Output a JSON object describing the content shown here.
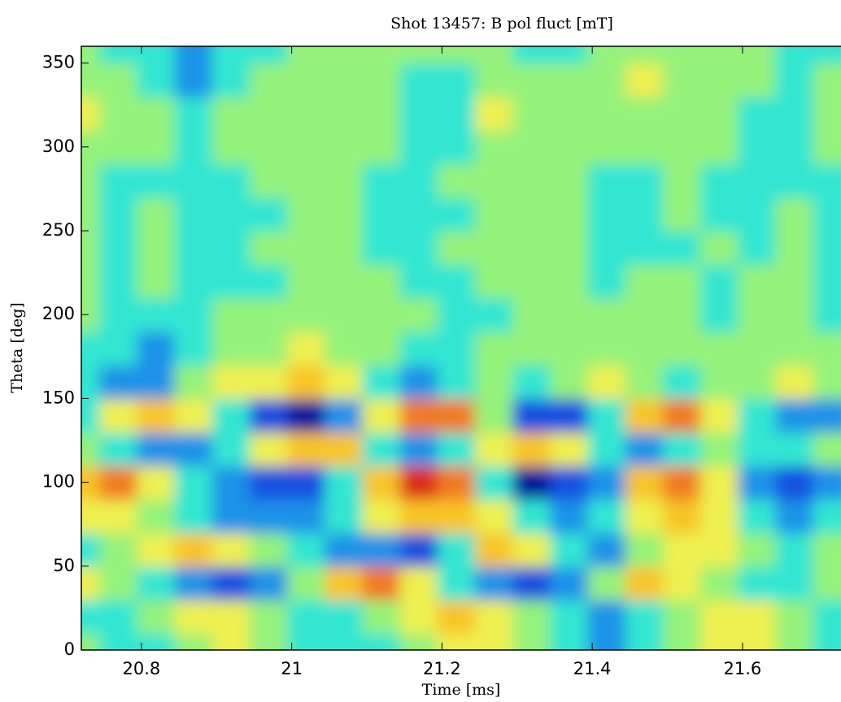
{
  "chart_data": {
    "type": "contour",
    "title": "Shot 13457: B pol fluct [mT]",
    "xlabel": "Time [ms]",
    "ylabel": "Theta [deg]",
    "xlim": [
      20.72,
      21.73
    ],
    "ylim": [
      0,
      360
    ],
    "xticks": [
      20.8,
      21,
      21.2,
      21.4,
      21.6
    ],
    "yticks": [
      0,
      50,
      100,
      150,
      200,
      250,
      300,
      350
    ],
    "x": [
      20.72,
      20.77,
      20.82,
      20.87,
      20.92,
      20.97,
      21.02,
      21.07,
      21.12,
      21.17,
      21.22,
      21.27,
      21.32,
      21.37,
      21.42,
      21.47,
      21.52,
      21.57,
      21.62,
      21.67,
      21.72
    ],
    "y": [
      0,
      20,
      40,
      60,
      80,
      100,
      120,
      140,
      160,
      180,
      200,
      220,
      240,
      260,
      280,
      300,
      320,
      340,
      360
    ],
    "z": [
      [
        0,
        -1,
        -1,
        0,
        1,
        0,
        -1,
        -1,
        -1,
        0,
        1,
        1,
        0,
        -1,
        -2,
        -1,
        0,
        1,
        1,
        0,
        -1
      ],
      [
        -1,
        -1,
        0,
        1,
        1,
        0,
        -1,
        -1,
        0,
        1,
        2,
        1,
        0,
        -1,
        -2,
        -1,
        0,
        1,
        1,
        0,
        -1
      ],
      [
        1,
        0,
        -1,
        -2,
        -3,
        -2,
        0,
        2,
        3,
        1,
        -1,
        -2,
        -3,
        -2,
        0,
        2,
        1,
        0,
        -1,
        -1,
        0
      ],
      [
        -1,
        0,
        1,
        2,
        1,
        0,
        -1,
        -2,
        -2,
        -3,
        -1,
        2,
        1,
        -1,
        -2,
        0,
        1,
        1,
        0,
        -1,
        0
      ],
      [
        1,
        1,
        0,
        -1,
        -2,
        -2,
        -2,
        -1,
        1,
        2,
        2,
        1,
        -1,
        -2,
        -1,
        1,
        2,
        1,
        -1,
        -2,
        -1
      ],
      [
        2,
        3,
        1,
        -1,
        -2,
        -3,
        -3,
        -1,
        2,
        4,
        3,
        -1,
        -4,
        -3,
        -2,
        2,
        3,
        1,
        -2,
        -3,
        -2
      ],
      [
        0,
        -1,
        -2,
        -2,
        -1,
        1,
        2,
        2,
        -1,
        -2,
        -1,
        1,
        2,
        1,
        -1,
        -2,
        -1,
        0,
        -1,
        -1,
        0
      ],
      [
        -1,
        1,
        2,
        1,
        -1,
        -3,
        -4,
        -2,
        1,
        3,
        3,
        0,
        -3,
        -3,
        -1,
        2,
        3,
        1,
        -1,
        -2,
        -2
      ],
      [
        -1,
        -2,
        -2,
        0,
        1,
        1,
        2,
        1,
        -1,
        -2,
        -1,
        0,
        -1,
        0,
        1,
        0,
        -1,
        0,
        0,
        1,
        0
      ],
      [
        -1,
        -1,
        -2,
        -1,
        0,
        0,
        1,
        0,
        0,
        -1,
        -1,
        0,
        0,
        0,
        0,
        0,
        0,
        0,
        0,
        0,
        0
      ],
      [
        0,
        -1,
        -1,
        -1,
        0,
        0,
        0,
        0,
        0,
        0,
        -1,
        -1,
        0,
        0,
        0,
        0,
        0,
        -1,
        0,
        0,
        -1
      ],
      [
        0,
        -1,
        0,
        -1,
        -1,
        -1,
        0,
        0,
        0,
        -1,
        -1,
        0,
        0,
        0,
        -1,
        0,
        0,
        -1,
        0,
        0,
        -1
      ],
      [
        0,
        -1,
        0,
        -1,
        -1,
        0,
        0,
        0,
        -1,
        -1,
        0,
        0,
        0,
        0,
        -1,
        -1,
        -1,
        0,
        -1,
        0,
        -1
      ],
      [
        0,
        -1,
        0,
        -1,
        -1,
        -1,
        0,
        0,
        -1,
        -1,
        -1,
        0,
        0,
        0,
        -1,
        -1,
        0,
        -1,
        -1,
        0,
        -1
      ],
      [
        0,
        -1,
        -1,
        -1,
        -1,
        0,
        0,
        0,
        -1,
        -1,
        0,
        0,
        0,
        0,
        -1,
        -1,
        0,
        -1,
        -1,
        -1,
        -1
      ],
      [
        0,
        0,
        0,
        -1,
        0,
        0,
        0,
        0,
        0,
        -1,
        -1,
        0,
        0,
        0,
        0,
        0,
        0,
        0,
        -1,
        -1,
        0
      ],
      [
        1,
        0,
        0,
        -1,
        0,
        0,
        0,
        0,
        0,
        -1,
        -1,
        1,
        0,
        0,
        0,
        0,
        0,
        0,
        -1,
        -1,
        0
      ],
      [
        0,
        0,
        -1,
        -2,
        -1,
        0,
        0,
        0,
        0,
        -1,
        -1,
        0,
        0,
        0,
        0,
        1,
        0,
        0,
        0,
        -1,
        0
      ],
      [
        0,
        -1,
        -1,
        -2,
        -1,
        -1,
        0,
        0,
        0,
        0,
        0,
        0,
        -1,
        -1,
        0,
        0,
        0,
        0,
        0,
        -1,
        -1
      ]
    ],
    "color_levels": [
      -4,
      -3,
      -2,
      -1,
      0,
      1,
      2,
      3,
      4
    ],
    "colors": [
      "#00129a",
      "#1450e0",
      "#1e92e8",
      "#32e6d2",
      "#94f27a",
      "#eef050",
      "#f8c428",
      "#f07a20",
      "#dc2a16"
    ]
  }
}
